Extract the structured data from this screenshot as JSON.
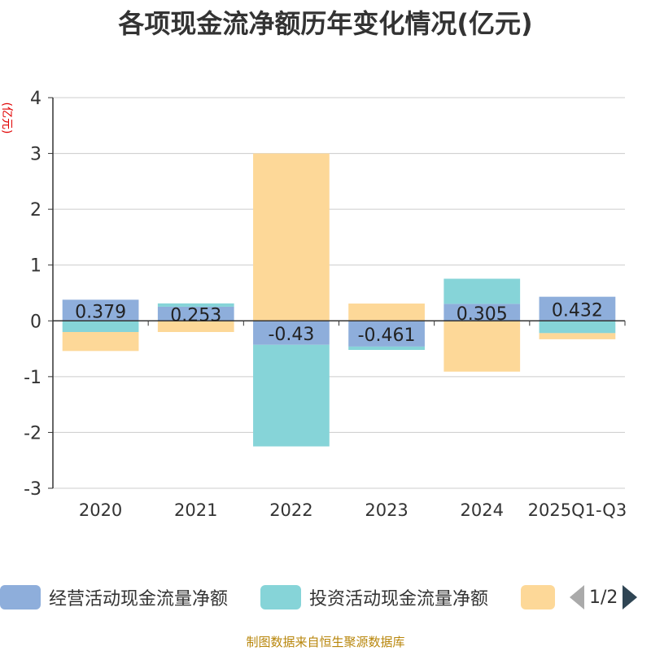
{
  "chart_data": {
    "type": "bar",
    "stacked": true,
    "title": "各项现金流净额历年变化情况(亿元)",
    "ylabel": "(亿元)",
    "ylim": [
      -3,
      4
    ],
    "yticks": [
      -3,
      -2,
      -1,
      0,
      1,
      2,
      3,
      4
    ],
    "categories": [
      "2020",
      "2021",
      "2022",
      "2023",
      "2024",
      "2025Q1-Q3"
    ],
    "series": [
      {
        "name": "经营活动现金流量净额",
        "color": "#8eaedb",
        "values": [
          0.379,
          0.253,
          -0.43,
          -0.461,
          0.305,
          0.432
        ],
        "labels": [
          "0.379",
          "0.253",
          "-0.43",
          "-0.461",
          "0.305",
          "0.432"
        ]
      },
      {
        "name": "投资活动现金流量净额",
        "color": "#86d4d8",
        "values": [
          -0.2,
          0.06,
          -1.82,
          -0.06,
          0.45,
          -0.22
        ]
      },
      {
        "name": "",
        "color": "#fdd898",
        "values": [
          -0.34,
          -0.2,
          3.0,
          0.31,
          -0.91,
          -0.11
        ]
      }
    ],
    "legend_placement": "bottom",
    "pager": "1/2"
  },
  "source": "制图数据来自恒生聚源数据库"
}
